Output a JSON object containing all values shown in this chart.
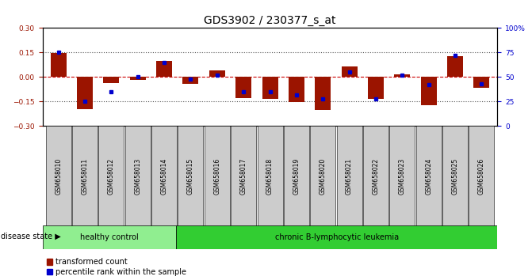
{
  "title": "GDS3902 / 230377_s_at",
  "samples": [
    "GSM658010",
    "GSM658011",
    "GSM658012",
    "GSM658013",
    "GSM658014",
    "GSM658015",
    "GSM658016",
    "GSM658017",
    "GSM658018",
    "GSM658019",
    "GSM658020",
    "GSM658021",
    "GSM658022",
    "GSM658023",
    "GSM658024",
    "GSM658025",
    "GSM658026"
  ],
  "bar_values": [
    0.145,
    -0.195,
    -0.035,
    -0.02,
    0.1,
    -0.04,
    0.04,
    -0.13,
    -0.135,
    -0.155,
    -0.2,
    0.065,
    -0.135,
    0.015,
    -0.175,
    0.13,
    -0.065
  ],
  "dot_values_pct": [
    75,
    25,
    35,
    50,
    65,
    48,
    52,
    35,
    35,
    32,
    28,
    55,
    28,
    52,
    42,
    72,
    43
  ],
  "healthy_count": 5,
  "ylim": [
    -0.3,
    0.3
  ],
  "y2lim": [
    0,
    100
  ],
  "yticks": [
    -0.3,
    -0.15,
    0,
    0.15,
    0.3
  ],
  "y2ticks": [
    0,
    25,
    50,
    75,
    100
  ],
  "bar_color": "#9B1400",
  "dot_color": "#0000CD",
  "healthy_color": "#90EE90",
  "leukemia_color": "#32CD32",
  "hline_color": "#CC0000",
  "dotted_color": "#555555",
  "disease_state_label": "disease state",
  "healthy_label": "healthy control",
  "leukemia_label": "chronic B-lymphocytic leukemia",
  "legend_red_label": "transformed count",
  "legend_blue_label": "percentile rank within the sample",
  "title_fontsize": 10,
  "tick_fontsize": 6.5,
  "label_fontsize": 7.5
}
